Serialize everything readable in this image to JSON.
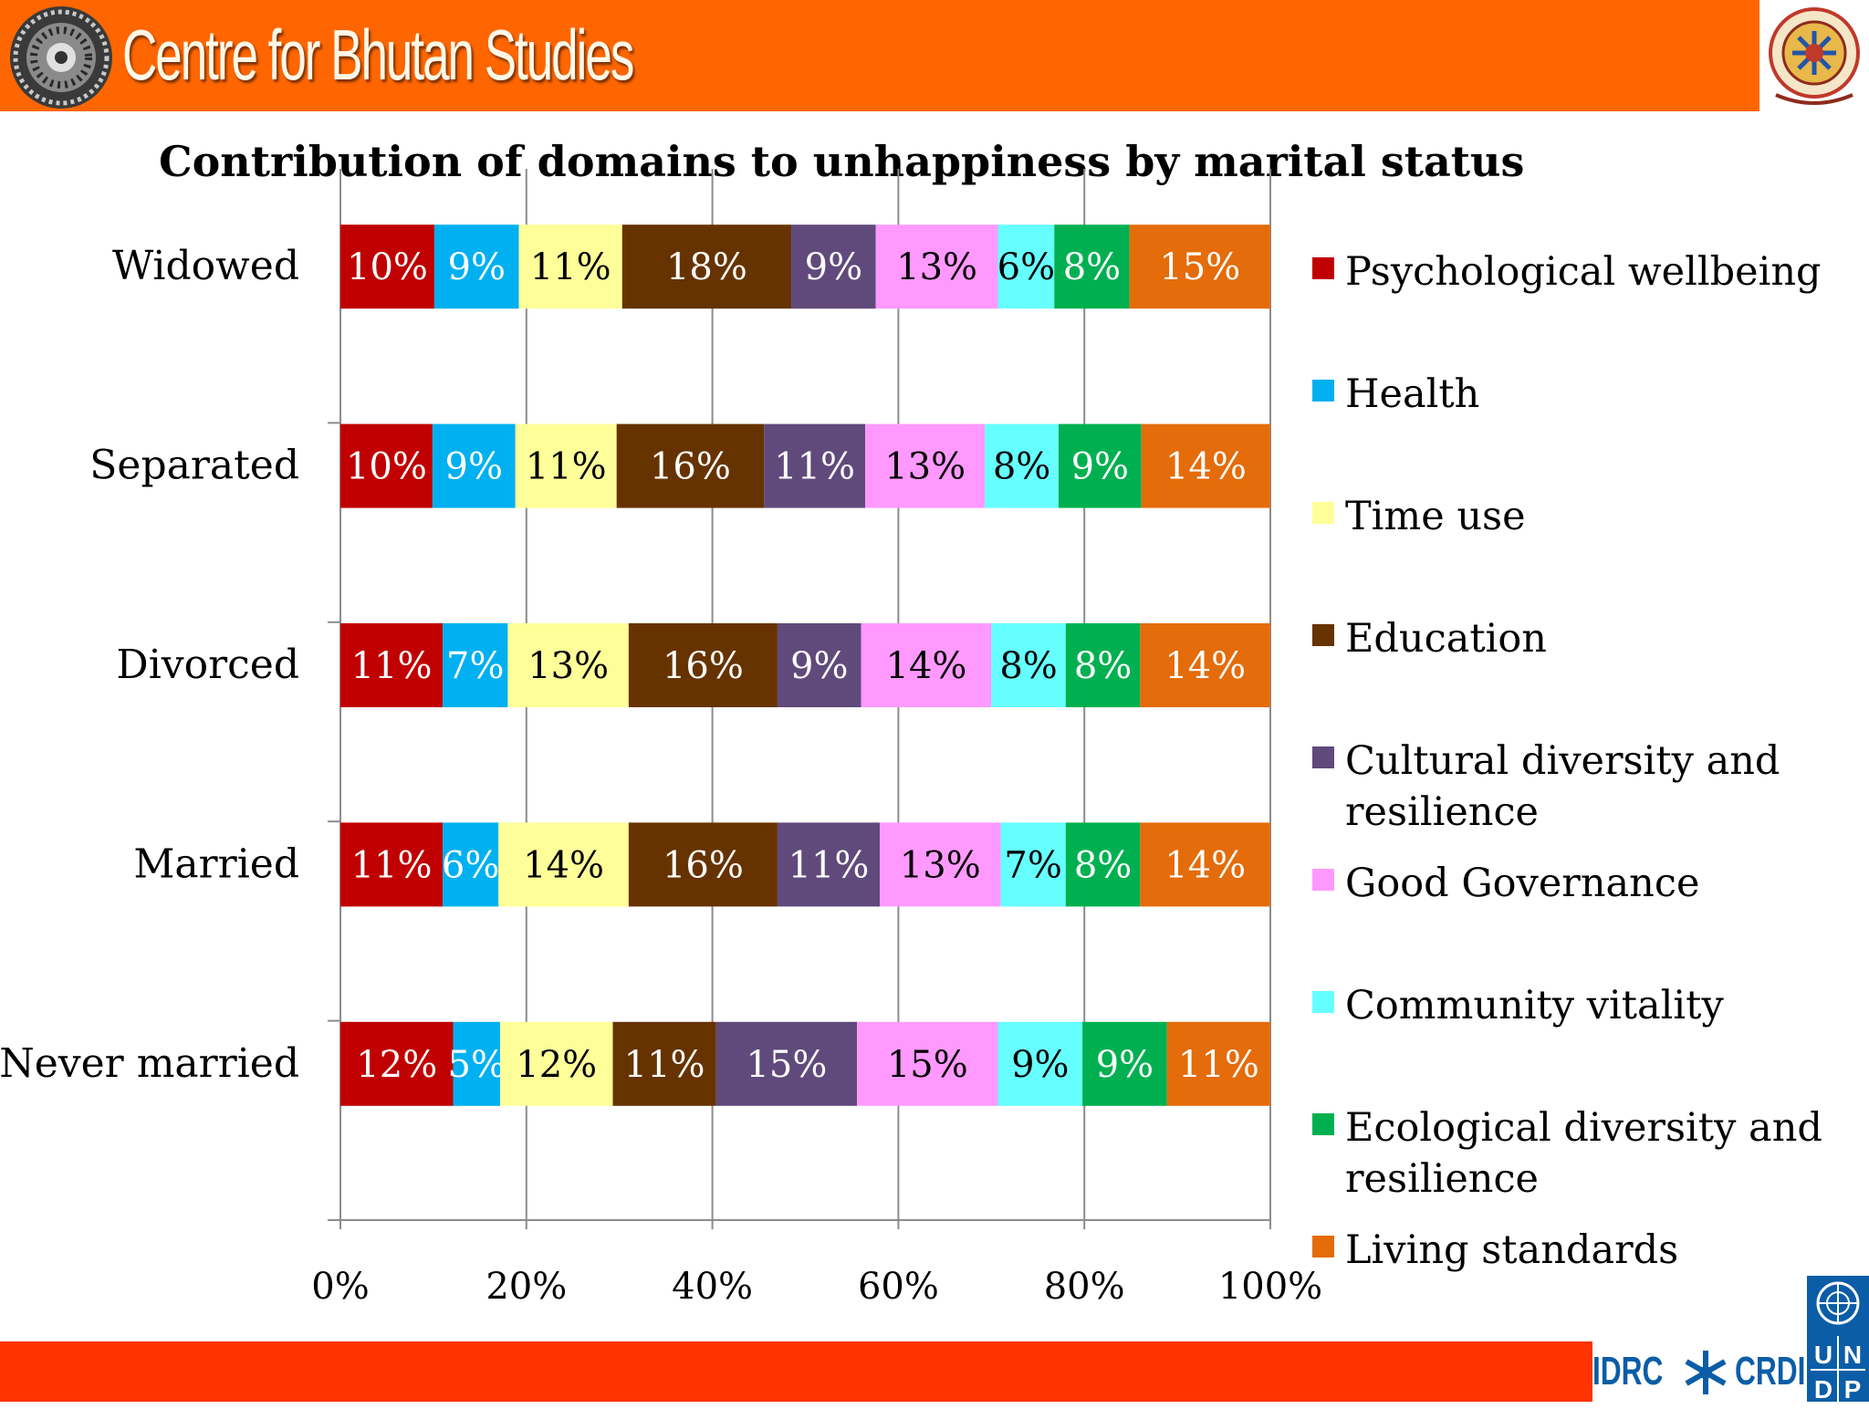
{
  "header": {
    "org_name": "Centre for Bhutan Studies",
    "bg_color": "#ff6600"
  },
  "footer": {
    "partner_left": "IDRC",
    "partner_right": "CRDI",
    "undp_letters": [
      "U",
      "N",
      "D",
      "P"
    ],
    "bg_color": "#ff3300"
  },
  "chart_data": {
    "type": "bar",
    "orientation": "horizontal",
    "stacked": "percent",
    "title": "Contribution of domains to unhappiness by marital status",
    "categories": [
      "Widowed",
      "Separated",
      "Divorced",
      "Married",
      "Never married"
    ],
    "x_ticks": [
      "0%",
      "20%",
      "40%",
      "60%",
      "80%",
      "100%"
    ],
    "xlim": [
      0,
      100
    ],
    "grid": "vertical",
    "legend_position": "right",
    "series": [
      {
        "name": "Psychological wellbeing",
        "color": "#c00000",
        "values": [
          10,
          10,
          11,
          11,
          12
        ],
        "labels": [
          "10%",
          "10%",
          "11%",
          "11%",
          "12%"
        ]
      },
      {
        "name": "Health",
        "color": "#00b0f0",
        "values": [
          9,
          9,
          7,
          6,
          5
        ],
        "labels": [
          "9%",
          "9%",
          "7%",
          "6%",
          "5%"
        ]
      },
      {
        "name": "Time use",
        "color": "#ffff99",
        "values": [
          11,
          11,
          13,
          14,
          12
        ],
        "labels": [
          "11%",
          "11%",
          "13%",
          "14%",
          "12%"
        ]
      },
      {
        "name": "Education",
        "color": "#663300",
        "values": [
          18,
          16,
          16,
          16,
          11
        ],
        "labels": [
          "18%",
          "16%",
          "16%",
          "16%",
          "11%"
        ]
      },
      {
        "name": "Cultural diversity and resilience",
        "color": "#604a7b",
        "values": [
          9,
          11,
          9,
          11,
          15
        ],
        "labels": [
          "9%",
          "11%",
          "9%",
          "11%",
          "15%"
        ]
      },
      {
        "name": "Good Governance",
        "color": "#ff99ff",
        "values": [
          13,
          13,
          14,
          13,
          15
        ],
        "labels": [
          "13%",
          "13%",
          "14%",
          "13%",
          "15%"
        ]
      },
      {
        "name": "Community vitality",
        "color": "#66ffff",
        "values": [
          6,
          8,
          8,
          7,
          9
        ],
        "labels": [
          "6%",
          "8%",
          "8%",
          "7%",
          "9%"
        ]
      },
      {
        "name": "Ecological diversity and resilience",
        "color": "#00b050",
        "values": [
          8,
          9,
          8,
          8,
          9
        ],
        "labels": [
          "8%",
          "9%",
          "8%",
          "8%",
          "9%"
        ]
      },
      {
        "name": "Living standards",
        "color": "#e46c0a",
        "values": [
          15,
          14,
          14,
          14,
          11
        ],
        "labels": [
          "15%",
          "14%",
          "14%",
          "14%",
          "11%"
        ]
      }
    ],
    "label_colors": {
      "Psychological wellbeing": "#ffffff",
      "Health": "#ffffff",
      "Time use": "#000000",
      "Education": "#ffffff",
      "Cultural diversity and resilience": "#ffffff",
      "Good Governance": "#000000",
      "Community vitality": "#000000",
      "Ecological diversity and resilience": "#ffffff",
      "Living standards": "#ffffff"
    }
  }
}
